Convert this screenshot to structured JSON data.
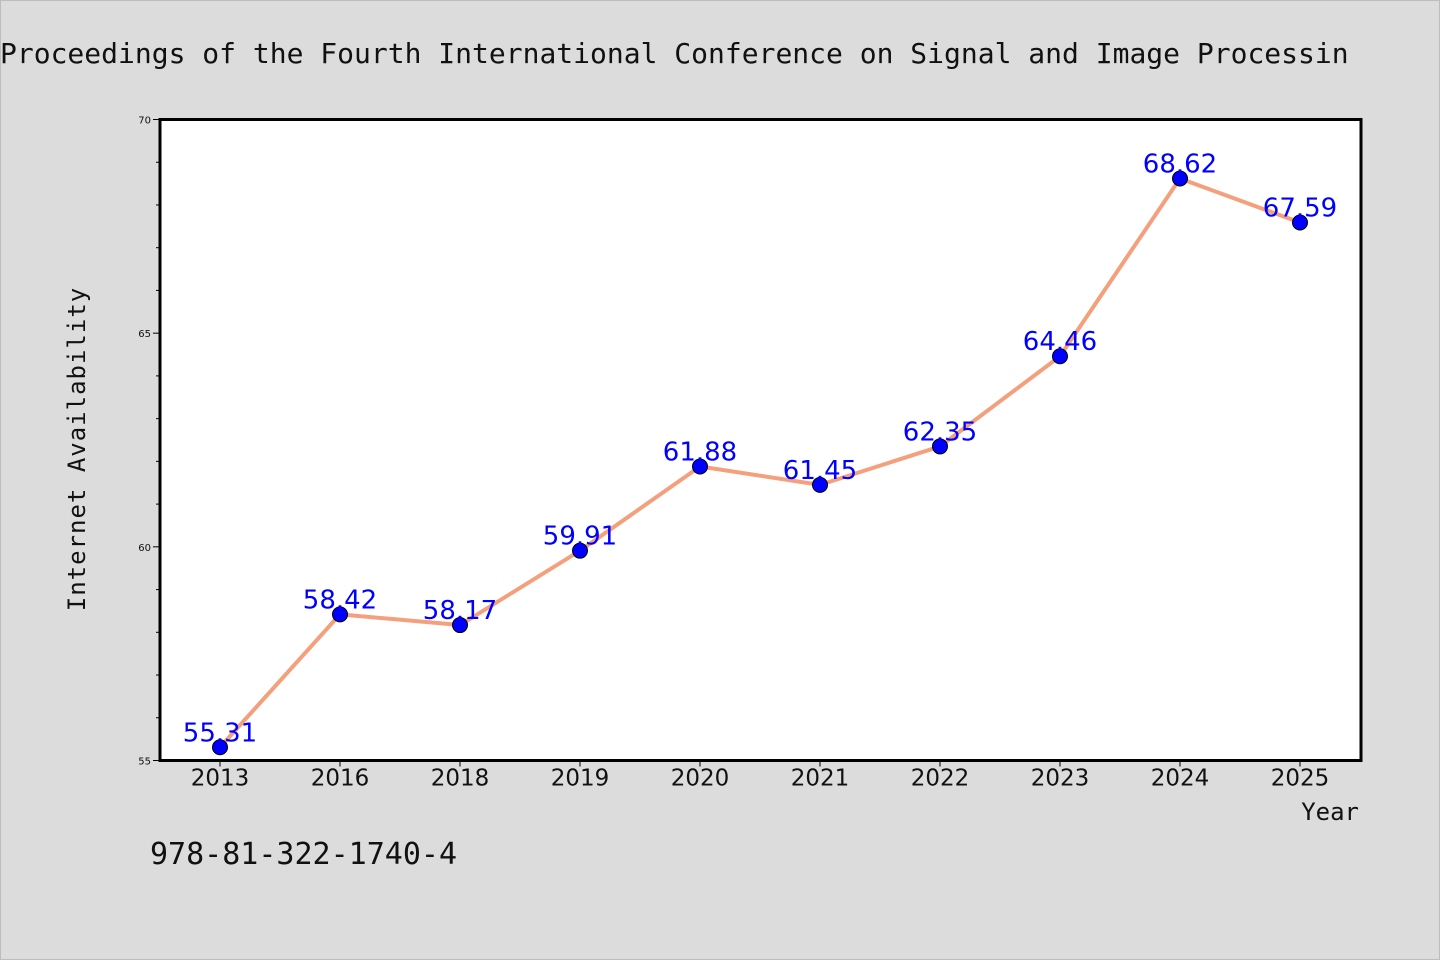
{
  "figure": {
    "title": "Proceedings of the Fourth International Conference on Signal and Image Processin",
    "footer_text": "978-81-322-1740-4",
    "background_color": "#dcdcdc",
    "plot_background_color": "#ffffff"
  },
  "chart_data": {
    "type": "line",
    "title": "Proceedings of the Fourth International Conference on Signal and Image Processin",
    "xlabel": "Year",
    "ylabel": "Internet Availability",
    "categories": [
      "2013",
      "2016",
      "2018",
      "2019",
      "2020",
      "2021",
      "2022",
      "2023",
      "2024",
      "2025"
    ],
    "series": [
      {
        "values": [
          55.31,
          58.42,
          58.17,
          59.91,
          61.88,
          61.45,
          62.35,
          64.46,
          68.62,
          67.59
        ],
        "line_color": "#f4a07c",
        "marker_color": "#0000ff"
      }
    ],
    "data_labels": [
      "55.31",
      "58.42",
      "58.17",
      "59.91",
      "61.88",
      "61.45",
      "62.35",
      "64.46",
      "68.62",
      "67.59"
    ],
    "ylim": [
      55,
      70
    ],
    "yticks": [
      55,
      60,
      65,
      70
    ],
    "ytick_labels": [
      "55",
      "60",
      "65",
      "70"
    ],
    "y_minor_step": 1,
    "grid": false,
    "data_label_color": "#0000ff"
  }
}
